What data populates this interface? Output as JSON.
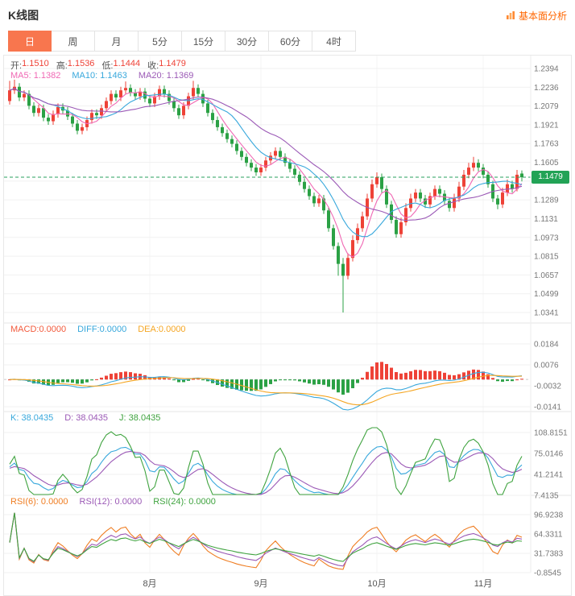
{
  "header": {
    "title": "K线图",
    "link_label": "基本面分析"
  },
  "tabs": [
    {
      "label": "日",
      "active": true
    },
    {
      "label": "周",
      "active": false
    },
    {
      "label": "月",
      "active": false
    },
    {
      "label": "5分",
      "active": false
    },
    {
      "label": "15分",
      "active": false
    },
    {
      "label": "30分",
      "active": false
    },
    {
      "label": "60分",
      "active": false
    },
    {
      "label": "4时",
      "active": false
    }
  ],
  "active_tab": "日",
  "price_panel": {
    "open_label": "开:",
    "open": "1.1510",
    "high_label": "高:",
    "high": "1.1536",
    "low_label": "低:",
    "low": "1.1444",
    "close_label": "收:",
    "close": "1.1479",
    "ma5_label": "MA5: 1.1382",
    "ma10_label": "MA10: 1.1463",
    "ma20_label": "MA20: 1.1369",
    "current_price_label": "1.1479"
  },
  "macd_panel": {
    "macd_label": "MACD:0.0000",
    "diff_label": "DIFF:0.0000",
    "dea_label": "DEA:0.0000"
  },
  "kdj_panel": {
    "k_label": "K: 38.0435",
    "d_label": "D: 38.0435",
    "j_label": "J: 38.0435"
  },
  "rsi_panel": {
    "rsi6_label": "RSI(6): 0.0000",
    "rsi12_label": "RSI(12): 0.0000",
    "rsi24_label": "RSI(24): 0.0000"
  },
  "x_axis": {
    "labels": [
      "8月",
      "9月",
      "10月",
      "11月"
    ]
  },
  "colors": {
    "up": "#ee4237",
    "down": "#2ba145",
    "ma5": "#f068b4",
    "ma10": "#38a8dc",
    "ma20": "#9b59b6",
    "macd_label": "#f25a3c",
    "diff": "#38a8dc",
    "dea": "#f5a623",
    "k": "#38a8dc",
    "d": "#9b59b6",
    "j": "#3fa33f",
    "rsi6": "#ef7d22",
    "rsi12": "#9b59b6",
    "rsi24": "#3fa33f",
    "price_line": "#28a05c",
    "badge_bg": "#22a356",
    "active_tab": "#f8764e",
    "link": "#ff6600"
  },
  "chart_data": {
    "type": "candlestick",
    "title": "K线图",
    "legend": [
      "MA5",
      "MA10",
      "MA20",
      "MACD",
      "DIFF",
      "DEA",
      "K",
      "D",
      "J",
      "RSI(6)",
      "RSI(12)",
      "RSI(24)"
    ],
    "last_bar": {
      "open": 1.151,
      "high": 1.1536,
      "low": 1.1444,
      "close": 1.1479
    },
    "ma_values": {
      "ma5": 1.1382,
      "ma10": 1.1463,
      "ma20": 1.1369
    },
    "current_price": 1.1479,
    "price_axis": {
      "max": 1.2394,
      "min": 1.0341,
      "ticks": [
        "1.2394",
        "1.2236",
        "1.2079",
        "1.1921",
        "1.1763",
        "1.1605",
        "",
        "1.1289",
        "1.1131",
        "1.0973",
        "1.0815",
        "1.0657",
        "1.0499",
        "1.0341"
      ]
    },
    "x_labels": [
      "8月",
      "9月",
      "10月",
      "11月"
    ],
    "month_tick_indices": [
      29,
      52,
      76,
      98
    ],
    "macd": {
      "macd": 0.0,
      "diff": 0.0,
      "dea": 0.0,
      "ticks": [
        "0.0184",
        "0.0076",
        "-0.0032",
        "-0.0141"
      ]
    },
    "kdj": {
      "k": 38.0435,
      "d": 38.0435,
      "j": 38.0435,
      "ticks": [
        "108.8151",
        "75.0146",
        "41.2141",
        "7.4135"
      ]
    },
    "rsi": {
      "rsi6": 0.0,
      "rsi12": 0.0,
      "rsi24": 0.0,
      "ticks": [
        "96.9238",
        "64.3311",
        "31.7383",
        "-0.8545"
      ]
    },
    "candles": [
      [
        1.212,
        1.229,
        1.209,
        1.221
      ],
      [
        1.221,
        1.23,
        1.218,
        1.224
      ],
      [
        1.224,
        1.227,
        1.212,
        1.215
      ],
      [
        1.215,
        1.221,
        1.212,
        1.218
      ],
      [
        1.218,
        1.221,
        1.205,
        1.208
      ],
      [
        1.208,
        1.211,
        1.199,
        1.202
      ],
      [
        1.202,
        1.209,
        1.199,
        1.206
      ],
      [
        1.206,
        1.209,
        1.195,
        1.198
      ],
      [
        1.198,
        1.201,
        1.192,
        1.195
      ],
      [
        1.195,
        1.204,
        1.192,
        1.201
      ],
      [
        1.201,
        1.21,
        1.198,
        1.207
      ],
      [
        1.207,
        1.21,
        1.201,
        1.204
      ],
      [
        1.204,
        1.207,
        1.196,
        1.199
      ],
      [
        1.199,
        1.202,
        1.19,
        1.193
      ],
      [
        1.193,
        1.196,
        1.184,
        1.187
      ],
      [
        1.187,
        1.193,
        1.184,
        1.19
      ],
      [
        1.19,
        1.199,
        1.187,
        1.196
      ],
      [
        1.196,
        1.205,
        1.193,
        1.202
      ],
      [
        1.202,
        1.205,
        1.197,
        1.2
      ],
      [
        1.2,
        1.209,
        1.197,
        1.206
      ],
      [
        1.206,
        1.215,
        1.203,
        1.212
      ],
      [
        1.212,
        1.221,
        1.209,
        1.218
      ],
      [
        1.218,
        1.221,
        1.212,
        1.215
      ],
      [
        1.215,
        1.224,
        1.212,
        1.221
      ],
      [
        1.221,
        1.2285,
        1.218,
        1.223
      ],
      [
        1.223,
        1.226,
        1.216,
        1.219
      ],
      [
        1.219,
        1.222,
        1.213,
        1.216
      ],
      [
        1.216,
        1.223,
        1.213,
        1.22
      ],
      [
        1.22,
        1.223,
        1.211,
        1.214
      ],
      [
        1.214,
        1.217,
        1.207,
        1.21
      ],
      [
        1.21,
        1.219,
        1.207,
        1.216
      ],
      [
        1.216,
        1.225,
        1.213,
        1.222
      ],
      [
        1.222,
        1.225,
        1.215,
        1.218
      ],
      [
        1.218,
        1.221,
        1.209,
        1.212
      ],
      [
        1.212,
        1.215,
        1.203,
        1.206
      ],
      [
        1.206,
        1.209,
        1.197,
        1.2
      ],
      [
        1.2,
        1.211,
        1.197,
        1.208
      ],
      [
        1.208,
        1.219,
        1.205,
        1.216
      ],
      [
        1.216,
        1.229,
        1.213,
        1.223
      ],
      [
        1.223,
        1.226,
        1.215,
        1.218
      ],
      [
        1.218,
        1.221,
        1.207,
        1.21
      ],
      [
        1.21,
        1.213,
        1.199,
        1.202
      ],
      [
        1.202,
        1.205,
        1.193,
        1.196
      ],
      [
        1.196,
        1.199,
        1.187,
        1.19
      ],
      [
        1.19,
        1.193,
        1.182,
        1.185
      ],
      [
        1.185,
        1.188,
        1.177,
        1.18
      ],
      [
        1.18,
        1.183,
        1.173,
        1.176
      ],
      [
        1.176,
        1.179,
        1.167,
        1.17
      ],
      [
        1.17,
        1.173,
        1.162,
        1.165
      ],
      [
        1.165,
        1.168,
        1.157,
        1.16
      ],
      [
        1.16,
        1.163,
        1.153,
        1.156
      ],
      [
        1.156,
        1.159,
        1.149,
        1.152
      ],
      [
        1.152,
        1.159,
        1.149,
        1.156
      ],
      [
        1.156,
        1.165,
        1.153,
        1.162
      ],
      [
        1.162,
        1.169,
        1.159,
        1.166
      ],
      [
        1.166,
        1.173,
        1.163,
        1.17
      ],
      [
        1.17,
        1.173,
        1.162,
        1.165
      ],
      [
        1.165,
        1.168,
        1.157,
        1.16
      ],
      [
        1.16,
        1.163,
        1.152,
        1.155
      ],
      [
        1.155,
        1.158,
        1.147,
        1.15
      ],
      [
        1.15,
        1.153,
        1.141,
        1.144
      ],
      [
        1.144,
        1.147,
        1.135,
        1.138
      ],
      [
        1.138,
        1.141,
        1.129,
        1.132
      ],
      [
        1.132,
        1.135,
        1.123,
        1.126
      ],
      [
        1.126,
        1.133,
        1.123,
        1.13
      ],
      [
        1.13,
        1.133,
        1.117,
        1.12
      ],
      [
        1.12,
        1.123,
        1.102,
        1.105
      ],
      [
        1.105,
        1.108,
        1.087,
        1.09
      ],
      [
        1.09,
        1.093,
        1.065,
        1.075
      ],
      [
        1.075,
        1.08,
        1.0341,
        1.065
      ],
      [
        1.065,
        1.084,
        1.062,
        1.08
      ],
      [
        1.08,
        1.099,
        1.077,
        1.095
      ],
      [
        1.095,
        1.109,
        1.092,
        1.105
      ],
      [
        1.105,
        1.119,
        1.102,
        1.115
      ],
      [
        1.115,
        1.134,
        1.112,
        1.13
      ],
      [
        1.13,
        1.146,
        1.127,
        1.142
      ],
      [
        1.142,
        1.152,
        1.139,
        1.148
      ],
      [
        1.148,
        1.151,
        1.135,
        1.138
      ],
      [
        1.138,
        1.141,
        1.122,
        1.125
      ],
      [
        1.125,
        1.128,
        1.109,
        1.112
      ],
      [
        1.112,
        1.115,
        1.097,
        1.1
      ],
      [
        1.1,
        1.114,
        1.097,
        1.11
      ],
      [
        1.11,
        1.126,
        1.107,
        1.122
      ],
      [
        1.122,
        1.134,
        1.119,
        1.13
      ],
      [
        1.13,
        1.138,
        1.127,
        1.135
      ],
      [
        1.135,
        1.138,
        1.127,
        1.13
      ],
      [
        1.13,
        1.133,
        1.122,
        1.125
      ],
      [
        1.125,
        1.135,
        1.122,
        1.132
      ],
      [
        1.132,
        1.141,
        1.129,
        1.138
      ],
      [
        1.138,
        1.141,
        1.131,
        1.134
      ],
      [
        1.134,
        1.137,
        1.125,
        1.128
      ],
      [
        1.128,
        1.131,
        1.119,
        1.122
      ],
      [
        1.122,
        1.134,
        1.119,
        1.13
      ],
      [
        1.13,
        1.144,
        1.127,
        1.14
      ],
      [
        1.14,
        1.154,
        1.137,
        1.15
      ],
      [
        1.15,
        1.16,
        1.147,
        1.156
      ],
      [
        1.156,
        1.165,
        1.153,
        1.16
      ],
      [
        1.16,
        1.163,
        1.153,
        1.156
      ],
      [
        1.156,
        1.159,
        1.147,
        1.15
      ],
      [
        1.15,
        1.153,
        1.139,
        1.142
      ],
      [
        1.142,
        1.145,
        1.127,
        1.13
      ],
      [
        1.13,
        1.133,
        1.121,
        1.125
      ],
      [
        1.125,
        1.139,
        1.122,
        1.135
      ],
      [
        1.135,
        1.146,
        1.132,
        1.142
      ],
      [
        1.142,
        1.145,
        1.135,
        1.138
      ],
      [
        1.138,
        1.154,
        1.136,
        1.15
      ],
      [
        1.151,
        1.1536,
        1.1444,
        1.1479
      ]
    ]
  }
}
